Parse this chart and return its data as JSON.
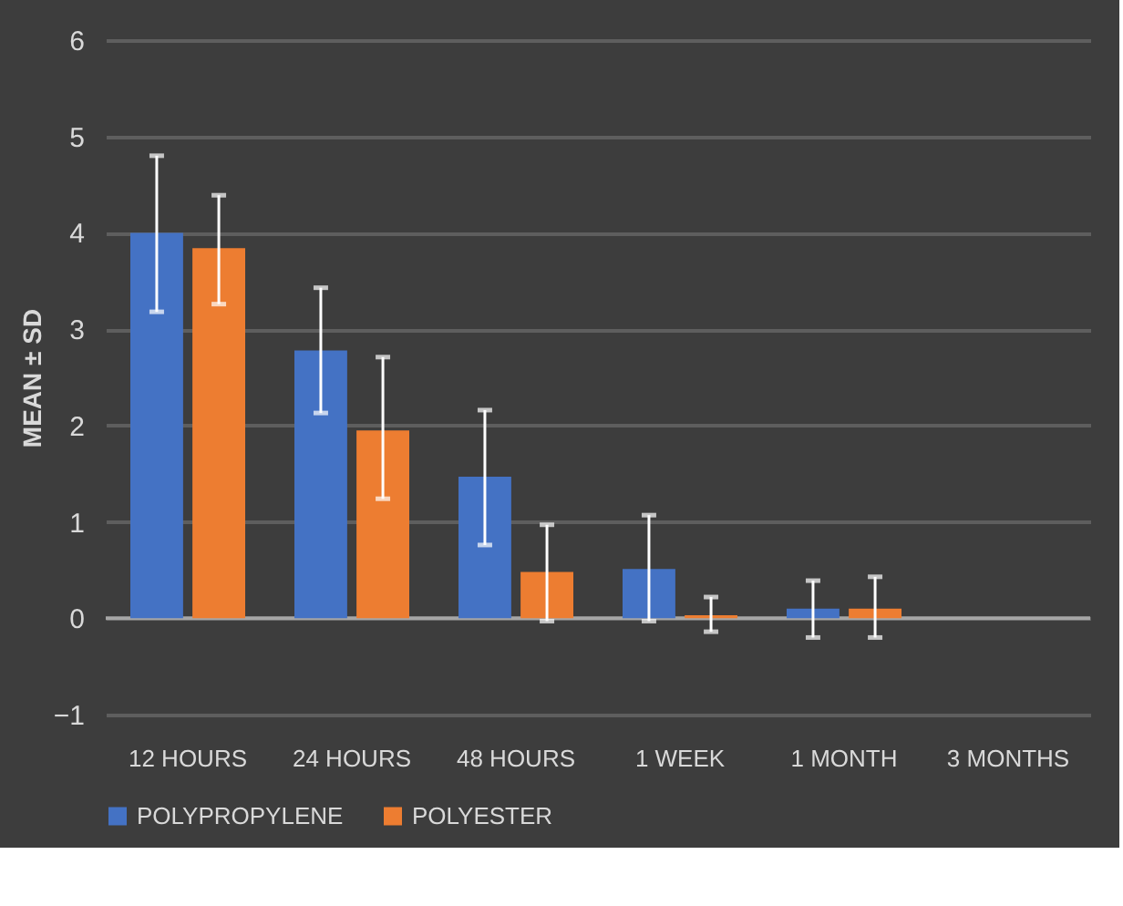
{
  "chart_data": {
    "type": "bar",
    "ylabel": "MEAN ± SD",
    "categories": [
      "12 HOURS",
      "24 HOURS",
      "48 HOURS",
      "1 WEEK",
      "1 MONTH",
      "3 MONTHS"
    ],
    "series": [
      {
        "name": "POLYPROPYLENE",
        "color": "#4472c4",
        "values": [
          4.0,
          2.78,
          1.47,
          0.51,
          0.1,
          0
        ],
        "errors": [
          [
            3.18,
            4.8
          ],
          [
            2.13,
            3.43
          ],
          [
            0.76,
            2.16
          ],
          [
            -0.03,
            1.07
          ],
          [
            -0.2,
            0.39
          ],
          null
        ]
      },
      {
        "name": "POLYESTER",
        "color": "#ed7d31",
        "values": [
          3.84,
          1.95,
          0.48,
          0.03,
          0.1,
          0
        ],
        "errors": [
          [
            3.26,
            4.39
          ],
          [
            1.24,
            2.71
          ],
          [
            -0.03,
            0.97
          ],
          [
            -0.14,
            0.22
          ],
          [
            -0.2,
            0.43
          ],
          null
        ]
      }
    ],
    "ylim": [
      -1,
      6
    ],
    "yticks": [
      -1,
      0,
      1,
      2,
      3,
      4,
      5,
      6
    ],
    "grid": "y",
    "legend": "bottom"
  }
}
